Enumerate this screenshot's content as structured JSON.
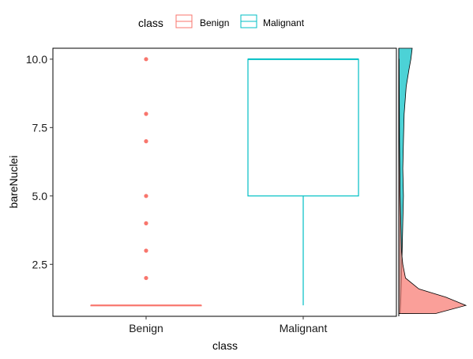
{
  "chart_data": {
    "type": "box",
    "xlabel": "class",
    "ylabel": "bareNuclei",
    "ylim": [
      0.6,
      10.4
    ],
    "yticks": [
      "2.5",
      "5.0",
      "7.5",
      "10.0"
    ],
    "ytick_values": [
      2.5,
      5.0,
      7.5,
      10.0
    ],
    "categories": [
      "Benign",
      "Malignant"
    ],
    "legend": {
      "title": "class",
      "position": "top",
      "entries": [
        "Benign",
        "Malignant"
      ]
    },
    "colors": {
      "Benign": "#F8766D",
      "Malignant": "#00BFC4"
    },
    "boxes": [
      {
        "category": "Benign",
        "min": 1,
        "q1": 1,
        "median": 1,
        "q3": 1,
        "max": 1,
        "outliers": [
          2,
          3,
          4,
          5,
          7,
          8,
          10
        ]
      },
      {
        "category": "Malignant",
        "min": 1,
        "q1": 5,
        "median": 10,
        "q3": 10,
        "max": 10,
        "outliers": []
      }
    ],
    "marginal_density": {
      "side": "right",
      "series": [
        {
          "name": "Benign",
          "y": [
            0.7,
            1.0,
            1.3,
            1.6,
            2.0,
            2.5,
            3.0,
            4.0,
            5.0,
            7.0,
            10.0
          ],
          "density": [
            0.55,
            1.0,
            0.7,
            0.3,
            0.1,
            0.06,
            0.04,
            0.03,
            0.02,
            0.01,
            0.005
          ]
        },
        {
          "name": "Malignant",
          "y": [
            0.7,
            1.2,
            2.0,
            3.0,
            4.0,
            5.0,
            6.0,
            7.0,
            8.0,
            9.0,
            9.6,
            10.0,
            10.4
          ],
          "density": [
            0.02,
            0.03,
            0.04,
            0.05,
            0.06,
            0.07,
            0.06,
            0.07,
            0.08,
            0.11,
            0.15,
            0.18,
            0.2
          ]
        }
      ]
    }
  }
}
